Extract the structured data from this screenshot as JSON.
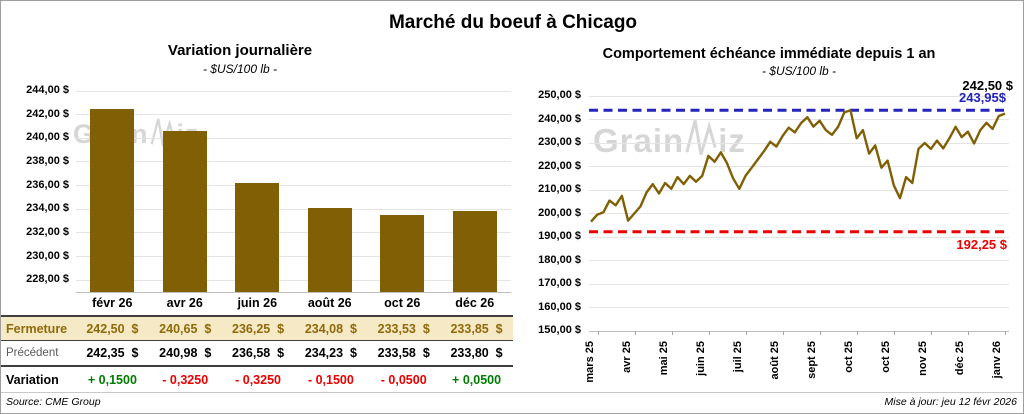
{
  "page": {
    "title": "Marché du boeuf à Chicago",
    "watermark": {
      "text": "GrainWiz",
      "left": "Grain",
      "right": "iz"
    },
    "footer": {
      "source": "Source: CME Group",
      "updated": "Mise à jour: jeu 12 févr 2026"
    }
  },
  "colors": {
    "gold": "#816005",
    "gold_text": "#8f6a0b",
    "cream": "#f6e9c6",
    "blue": "#2323be",
    "red": "#ec0000",
    "green": "#007d00",
    "grid": "#e4e4e4",
    "watermark": "#d6d6d6"
  },
  "chart_data": [
    {
      "type": "bar",
      "title": "Variation journalière",
      "subtitle": "- $US/100 lb -",
      "categories": [
        "févr 26",
        "avr 26",
        "juin 26",
        "août 26",
        "oct 26",
        "déc 26"
      ],
      "values": [
        242.5,
        240.65,
        236.25,
        234.08,
        233.53,
        233.85
      ],
      "ylim": [
        227,
        244
      ],
      "yticks": [
        244,
        242,
        240,
        238,
        236,
        234,
        232,
        230,
        228
      ],
      "ytick_labels": [
        "244,00 $",
        "242,00 $",
        "240,00 $",
        "238,00 $",
        "236,00 $",
        "234,00 $",
        "232,00 $",
        "230,00 $",
        "228,00 $"
      ],
      "grid": true,
      "bar_color": "#816005"
    },
    {
      "type": "line",
      "title": "Comportement échéance immédiate depuis 1 an",
      "subtitle": "- $US/100 lb -",
      "x_labels": [
        "mars 25",
        "avr 25",
        "mai 25",
        "juin 25",
        "juil 25",
        "août 25",
        "sept 25",
        "oct 25",
        "oct 25",
        "nov 25",
        "déc 25",
        "janv 26"
      ],
      "values": [
        196.5,
        199.5,
        200.5,
        205.5,
        203.5,
        207.5,
        197,
        200,
        203,
        209,
        212.5,
        208.5,
        213,
        210.5,
        215.5,
        212.5,
        216,
        213.5,
        216,
        224.5,
        222,
        226,
        221.5,
        215,
        210.5,
        216,
        219.5,
        223,
        226.5,
        230.5,
        228.5,
        233,
        236.5,
        234.5,
        238.5,
        241,
        237,
        239.5,
        235.5,
        233.5,
        237,
        243,
        243.9,
        232,
        235.5,
        225.5,
        229,
        219.5,
        222.5,
        212,
        206.5,
        215.5,
        213,
        227.5,
        230,
        227.5,
        231,
        227.7,
        232,
        236.9,
        232.5,
        234.8,
        229.8,
        235.5,
        238.6,
        236,
        241.5,
        242.5
      ],
      "ylim": [
        150,
        250
      ],
      "yticks": [
        250,
        240,
        230,
        220,
        210,
        200,
        190,
        180,
        170,
        160,
        150
      ],
      "ytick_labels": [
        "250,00 $",
        "240,00 $",
        "230,00 $",
        "220,00 $",
        "210,00 $",
        "200,00 $",
        "190,00 $",
        "180,00 $",
        "170,00 $",
        "160,00 $",
        "150,00 $"
      ],
      "grid": true,
      "line_color": "#816005",
      "hlines": [
        {
          "value": 243.95,
          "label": "243,95$",
          "color": "#2323be"
        },
        {
          "value": 192.25,
          "label": "192,25 $",
          "color": "#ec0000"
        }
      ],
      "last_value_label": "242,50 $"
    }
  ],
  "table": {
    "rows": [
      {
        "label": "Fermeture",
        "style": "fermeture",
        "values": [
          "242,50  $",
          "240,65  $",
          "236,25  $",
          "234,08  $",
          "233,53  $",
          "233,85  $"
        ]
      },
      {
        "label": "Précédent",
        "style": "precedent",
        "values": [
          "242,35  $",
          "240,98  $",
          "236,58  $",
          "234,23  $",
          "233,58  $",
          "233,80  $"
        ]
      },
      {
        "label": "Variation",
        "style": "variation",
        "values": [
          "+ 0,1500",
          "- 0,3250",
          "- 0,3250",
          "- 0,1500",
          "- 0,0500",
          "+ 0,0500"
        ],
        "signs": [
          "pos",
          "neg",
          "neg",
          "neg",
          "neg",
          "pos"
        ]
      }
    ]
  }
}
